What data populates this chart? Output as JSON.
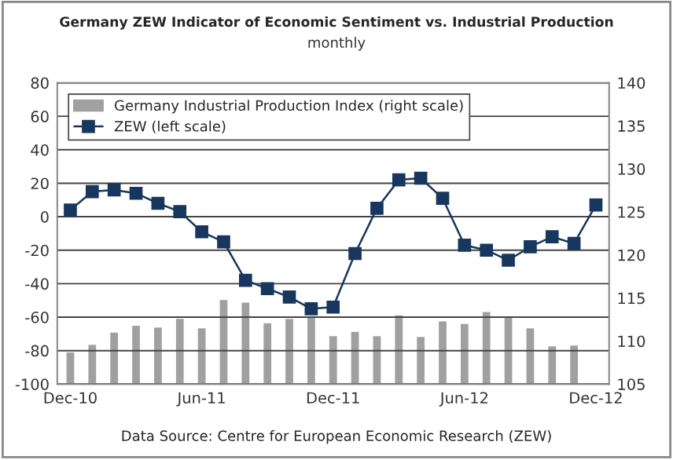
{
  "chart_data": {
    "type": "line",
    "title": "Germany ZEW Indicator of Economic Sentiment vs. Industrial Production",
    "subtitle": "monthly",
    "categories": [
      "Dec-10",
      null,
      null,
      null,
      null,
      null,
      "Jun-11",
      null,
      null,
      null,
      null,
      null,
      "Dec-11",
      null,
      null,
      null,
      null,
      null,
      "Jun-12",
      null,
      null,
      null,
      null,
      null,
      "Dec-12"
    ],
    "series": [
      {
        "name": "Germany Industrial Production Index (right scale)",
        "type": "bar",
        "axis": "y2",
        "color": "#a0a0a0",
        "values": [
          108.8,
          109.7,
          111.1,
          111.9,
          111.7,
          112.7,
          111.6,
          114.9,
          114.6,
          112.2,
          112.7,
          112.9,
          110.7,
          111.2,
          110.7,
          113.1,
          110.6,
          112.4,
          112.1,
          113.5,
          113.0,
          111.6,
          109.5,
          109.6,
          null
        ]
      },
      {
        "name": "ZEW (left scale)",
        "color": "#17375e",
        "marker": "square",
        "values": [
          4,
          15,
          16,
          14,
          8,
          3,
          -9,
          -15,
          -38,
          -43,
          -48,
          -55,
          -54,
          -22,
          5,
          22,
          23,
          11,
          -17,
          -20,
          -26,
          -18,
          -12,
          -16,
          7
        ]
      }
    ],
    "ylim": [
      -100,
      80
    ],
    "yticks": [
      -100,
      -80,
      -60,
      -40,
      -20,
      0,
      20,
      40,
      60,
      80
    ],
    "y2lim": [
      105,
      140
    ],
    "y2ticks": [
      105,
      110,
      115,
      120,
      125,
      130,
      135,
      140
    ],
    "grid": "y",
    "legend": "top left",
    "annotations": [
      "Data Source: Centre for European Economic Research (ZEW)"
    ]
  }
}
